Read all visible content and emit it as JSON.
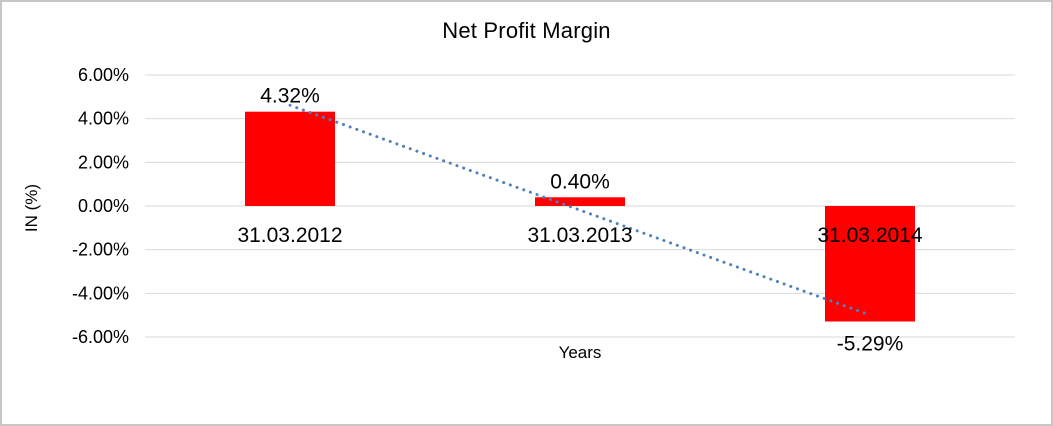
{
  "window": {
    "background": "#ffffff",
    "border_color": "#c6c6c6"
  },
  "chart_data": {
    "type": "bar",
    "title": "Net Profit Margin",
    "xlabel": "Years",
    "ylabel": "IN (%)",
    "categories": [
      "31.03.2012",
      "31.03.2013",
      "31.03.2014"
    ],
    "values": [
      4.32,
      0.4,
      -5.29
    ],
    "data_labels": [
      "4.32%",
      "0.40%",
      "-5.29%"
    ],
    "bar_color": "#ff0000",
    "ylim": [
      -6,
      6
    ],
    "y_ticks": [
      {
        "value": 6,
        "label": "6.00%"
      },
      {
        "value": 4,
        "label": "4.00%"
      },
      {
        "value": 2,
        "label": "2.00%"
      },
      {
        "value": 0,
        "label": "0.00%"
      },
      {
        "value": -2,
        "label": "-2.00%"
      },
      {
        "value": -4,
        "label": "-4.00%"
      },
      {
        "value": -6,
        "label": "-6.00%"
      }
    ],
    "gridlines": true,
    "grid_color": "#d9d9d9",
    "legend": "none",
    "trendline": {
      "type": "linear",
      "style": "dotted",
      "color": "#4f81bd"
    }
  }
}
